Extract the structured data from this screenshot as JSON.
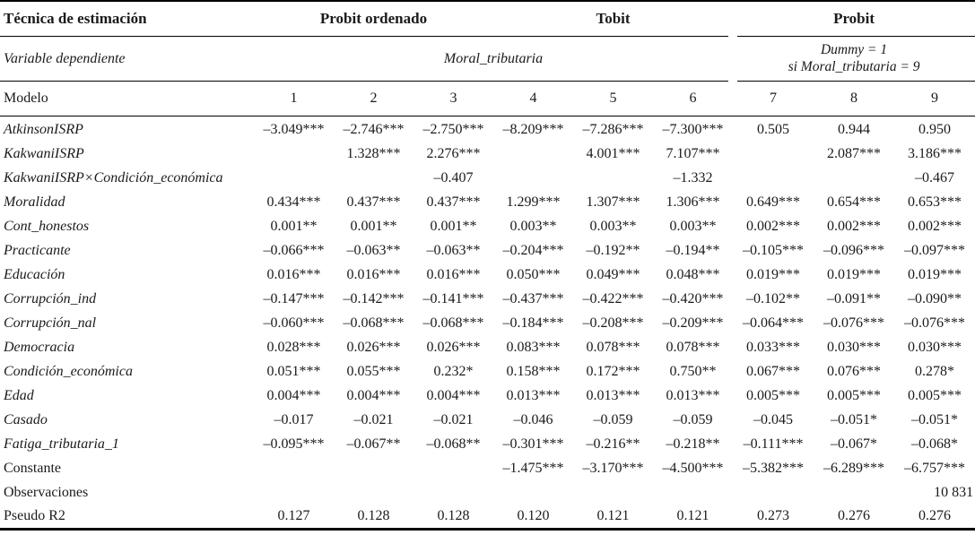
{
  "table": {
    "header": {
      "technique_label": "Técnica de estimación",
      "groups": [
        {
          "label": "Probit ordenado"
        },
        {
          "label": "Tobit"
        },
        {
          "label": "Probit"
        }
      ],
      "dependent_label": "Variable dependiente",
      "dependent_main": "Moral_tributaria",
      "dependent_dummy_line1": "Dummy = 1",
      "dependent_dummy_line2": "si Moral_tributaria = 9",
      "model_label": "Modelo",
      "model_numbers": [
        "1",
        "2",
        "3",
        "4",
        "5",
        "6",
        "7",
        "8",
        "9"
      ]
    },
    "rows": [
      {
        "label": "AtkinsonISRP",
        "italic": true,
        "values": [
          "–3.049***",
          "–2.746***",
          "–2.750***",
          "–8.209***",
          "–7.286***",
          "–7.300***",
          "0.505",
          "0.944",
          "0.950"
        ]
      },
      {
        "label": "KakwaniISRP",
        "italic": true,
        "values": [
          "",
          "1.328***",
          "2.276***",
          "",
          "4.001***",
          "7.107***",
          "",
          "2.087***",
          "3.186***"
        ]
      },
      {
        "label": "KakwaniISRP×Condición_económica",
        "italic": true,
        "values": [
          "",
          "",
          "–0.407",
          "",
          "",
          "–1.332",
          "",
          "",
          "–0.467"
        ]
      },
      {
        "label": "Moralidad",
        "italic": true,
        "values": [
          "0.434***",
          "0.437***",
          "0.437***",
          "1.299***",
          "1.307***",
          "1.306***",
          "0.649***",
          "0.654***",
          "0.653***"
        ]
      },
      {
        "label": "Cont_honestos",
        "italic": true,
        "values": [
          "0.001**",
          "0.001**",
          "0.001**",
          "0.003**",
          "0.003**",
          "0.003**",
          "0.002***",
          "0.002***",
          "0.002***"
        ]
      },
      {
        "label": "Practicante",
        "italic": true,
        "values": [
          "–0.066***",
          "–0.063**",
          "–0.063**",
          "–0.204***",
          "–0.192**",
          "–0.194**",
          "–0.105***",
          "–0.096***",
          "–0.097***"
        ]
      },
      {
        "label": "Educación",
        "italic": true,
        "values": [
          "0.016***",
          "0.016***",
          "0.016***",
          "0.050***",
          "0.049***",
          "0.048***",
          "0.019***",
          "0.019***",
          "0.019***"
        ]
      },
      {
        "label": "Corrupción_ind",
        "italic": true,
        "values": [
          "–0.147***",
          "–0.142***",
          "–0.141***",
          "–0.437***",
          "–0.422***",
          "–0.420***",
          "–0.102**",
          "–0.091**",
          "–0.090**"
        ]
      },
      {
        "label": "Corrupción_nal",
        "italic": true,
        "values": [
          "–0.060***",
          "–0.068***",
          "–0.068***",
          "–0.184***",
          "–0.208***",
          "–0.209***",
          "–0.064***",
          "–0.076***",
          "–0.076***"
        ]
      },
      {
        "label": "Democracia",
        "italic": true,
        "values": [
          "0.028***",
          "0.026***",
          "0.026***",
          "0.083***",
          "0.078***",
          "0.078***",
          "0.033***",
          "0.030***",
          "0.030***"
        ]
      },
      {
        "label": "Condición_económica",
        "italic": true,
        "values": [
          "0.051***",
          "0.055***",
          "0.232*",
          "0.158***",
          "0.172***",
          "0.750**",
          "0.067***",
          "0.076***",
          "0.278*"
        ]
      },
      {
        "label": "Edad",
        "italic": true,
        "values": [
          "0.004***",
          "0.004***",
          "0.004***",
          "0.013***",
          "0.013***",
          "0.013***",
          "0.005***",
          "0.005***",
          "0.005***"
        ]
      },
      {
        "label": "Casado",
        "italic": true,
        "values": [
          "–0.017",
          "–0.021",
          "–0.021",
          "–0.046",
          "–0.059",
          "–0.059",
          "–0.045",
          "–0.051*",
          "–0.051*"
        ]
      },
      {
        "label": "Fatiga_tributaria_1",
        "italic": true,
        "values": [
          "–0.095***",
          "–0.067**",
          "–0.068**",
          "–0.301***",
          "–0.216**",
          "–0.218**",
          "–0.111***",
          "–0.067*",
          "–0.068*"
        ]
      },
      {
        "label": "Constante",
        "italic": false,
        "values": [
          "",
          "",
          "",
          "–1.475***",
          "–3.170***",
          "–4.500***",
          "–5.382***",
          "–6.289***",
          "–6.757***"
        ]
      },
      {
        "label": "Observaciones",
        "italic": false,
        "last_right_align": true,
        "values": [
          "",
          "",
          "",
          "",
          "",
          "",
          "",
          "",
          "10 831"
        ]
      },
      {
        "label": "Pseudo R2",
        "italic": false,
        "values": [
          "0.127",
          "0.128",
          "0.128",
          "0.120",
          "0.121",
          "0.121",
          "0.273",
          "0.276",
          "0.276"
        ]
      }
    ]
  }
}
